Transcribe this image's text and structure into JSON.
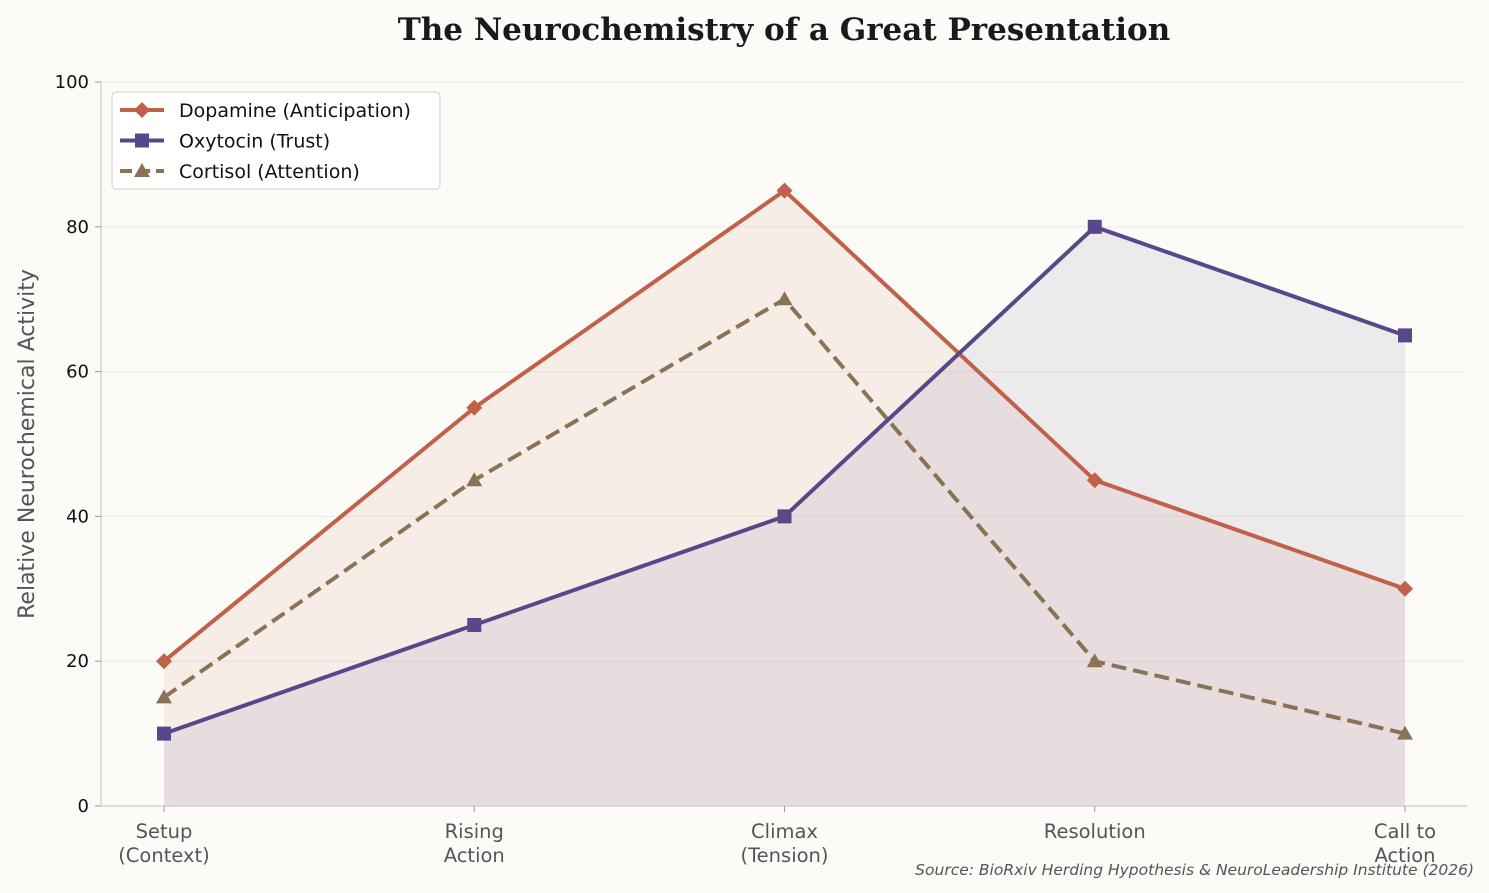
{
  "chart_data": {
    "type": "line",
    "title": "The Neurochemistry of a Great Presentation",
    "xlabel": "",
    "ylabel": "Relative Neurochemical Activity",
    "categories": [
      [
        "Setup",
        "(Context)"
      ],
      [
        "Rising",
        "Action"
      ],
      [
        "Climax",
        "(Tension)"
      ],
      [
        "Resolution"
      ],
      [
        "Call to",
        "Action"
      ]
    ],
    "ylim": [
      0,
      100
    ],
    "yticks": [
      0,
      20,
      40,
      60,
      80,
      100
    ],
    "grid": "horizontal",
    "legend_position": "top-left",
    "series": [
      {
        "name": "Dopamine (Anticipation)",
        "values": [
          20,
          55,
          85,
          45,
          30
        ],
        "color": "#c0614a",
        "marker": "diamond",
        "dash": "solid",
        "fill": true
      },
      {
        "name": "Oxytocin (Trust)",
        "values": [
          10,
          25,
          40,
          80,
          65
        ],
        "color": "#584889",
        "marker": "square",
        "dash": "solid",
        "fill": true
      },
      {
        "name": "Cortisol (Attention)",
        "values": [
          15,
          45,
          70,
          20,
          10
        ],
        "color": "#8a7354",
        "marker": "triangle",
        "dash": "dashed",
        "fill": false
      }
    ],
    "source": "Source: BioRxiv Herding Hypothesis & NeuroLeadership Institute (2026)"
  }
}
